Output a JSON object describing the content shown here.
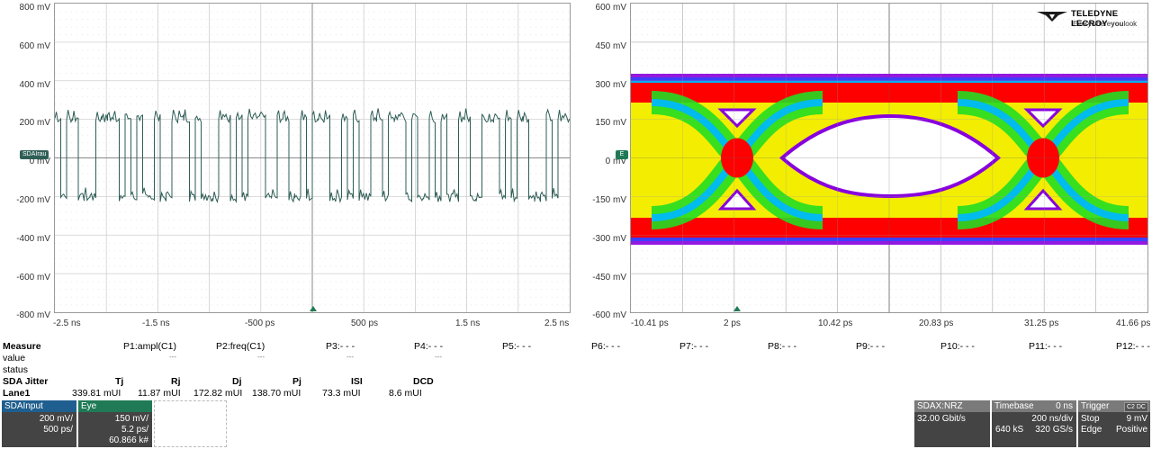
{
  "left_panel": {
    "y_labels": [
      "800 mV",
      "600 mV",
      "400 mV",
      "200 mV",
      "0 mV",
      "-200 mV",
      "-400 mV",
      "-600 mV",
      "-800 mV"
    ],
    "x_labels": [
      "-2.5 ns",
      "-1.5 ns",
      "-500 ps",
      "500 ps",
      "1.5 ns",
      "2.5 ns"
    ],
    "channel_marker": "SDAIrau"
  },
  "right_panel": {
    "y_labels": [
      "600 mV",
      "450 mV",
      "300 mV",
      "150 mV",
      "0 mV",
      "-150 mV",
      "-300 mV",
      "-450 mV",
      "-600 mV"
    ],
    "x_labels": [
      "-10.41 ps",
      "2 ps",
      "10.42 ps",
      "20.83 ps",
      "31.25 ps",
      "41.66 ps"
    ],
    "channel_marker": "E",
    "logo_text_top": "TELEDYNE LECROY",
    "logo_text_bottom_a": "Everywhere",
    "logo_text_bottom_b": "you",
    "logo_text_bottom_c": "look"
  },
  "measure": {
    "header": "Measure",
    "params": [
      "P1:ampl(C1)",
      "P2:freq(C1)",
      "P3:- - -",
      "P4:- - -",
      "P5:- - -",
      "P6:- - -",
      "P7:- - -",
      "P8:- - -",
      "P9:- - -",
      "P10:- - -",
      "P11:- - -",
      "P12:- - -"
    ],
    "row_value": "value",
    "row_status": "status",
    "value_dashes": [
      "---",
      "---",
      "---",
      "---"
    ]
  },
  "jitter": {
    "title": "SDA Jitter",
    "headers": [
      "Tj",
      "Rj",
      "Dj",
      "Pj",
      "ISI",
      "DCD"
    ],
    "lane": "Lane1",
    "values": [
      "339.81 mUI",
      "11.87 mUI",
      "172.82 mUI",
      "138.70 mUI",
      "73.3 mUI",
      "8.6 mUI"
    ]
  },
  "descriptors": {
    "sdainput": {
      "title": "SDAInput",
      "line1": "200 mV/",
      "line2": "500 ps/"
    },
    "eye": {
      "title": "Eye",
      "line1": "150 mV/",
      "line2": "5.2 ps/",
      "line3": "60.866 k#"
    },
    "sdax": {
      "title": "SDAX:NRZ",
      "line1": "32.00 Gbit/s"
    },
    "timebase": {
      "title": "Timebase",
      "title_val": "0 ns",
      "line1": "200 ns/div",
      "line2_a": "640 kS",
      "line2_b": "320 GS/s"
    },
    "trigger": {
      "title": "Trigger",
      "badge": "C2 DC",
      "line1_a": "Stop",
      "line1_b": "9 mV",
      "line2_a": "Edge",
      "line2_b": "Positive"
    }
  },
  "colors": {
    "trace": "#2f5e57",
    "eye_red": "#ff0000",
    "eye_yellow": "#ffee00",
    "eye_green": "#22dd22",
    "eye_cyan": "#00bbee",
    "eye_blue": "#3344ff",
    "eye_purple": "#8800dd",
    "desc_blue": "#1f5f8f",
    "desc_green": "#1f7a55",
    "desc_dark": "#444444",
    "desc_gray": "#7a7a7a"
  }
}
